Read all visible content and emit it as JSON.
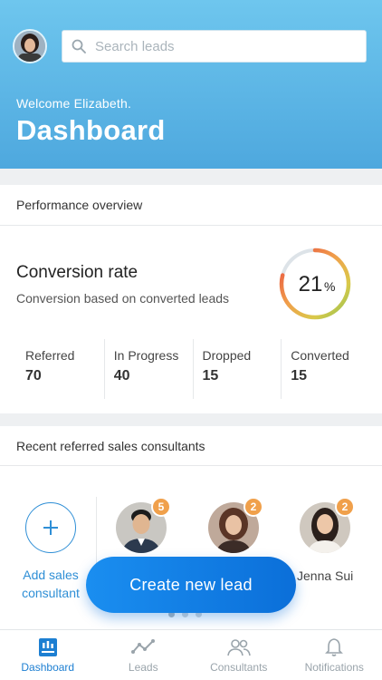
{
  "header": {
    "search_placeholder": "Search leads",
    "welcome": "Welcome Elizabeth.",
    "title": "Dashboard"
  },
  "performance": {
    "section_title": "Performance overview",
    "conversion_title": "Conversion rate",
    "conversion_subtitle": "Conversion based on converted leads",
    "rate_value": "21",
    "rate_unit": "%",
    "rate_fraction": 0.21,
    "stats": [
      {
        "label": "Referred",
        "value": "70"
      },
      {
        "label": "In Progress",
        "value": "40"
      },
      {
        "label": "Dropped",
        "value": "15"
      },
      {
        "label": "Converted",
        "value": "15"
      }
    ]
  },
  "recent": {
    "section_title": "Recent referred sales consultants",
    "add_label_line1": "Add sales",
    "add_label_line2": "consultant",
    "consultants": [
      {
        "name": "",
        "badge": "5"
      },
      {
        "name": "",
        "badge": "2"
      },
      {
        "name": "Jenna Sui",
        "badge": "2"
      }
    ],
    "page_count": 3,
    "active_page": 0
  },
  "cta": {
    "label": "Create new lead"
  },
  "tabs": [
    {
      "label": "Dashboard",
      "icon": "dashboard-icon",
      "active": true
    },
    {
      "label": "Leads",
      "icon": "leads-chart-icon",
      "active": false
    },
    {
      "label": "Consultants",
      "icon": "consultants-icon",
      "active": false
    },
    {
      "label": "Notifications",
      "icon": "bell-icon",
      "active": false
    }
  ],
  "colors": {
    "accent": "#1d7fd2",
    "badge": "#f0a04b",
    "ring_start": "#e8483f",
    "ring_end": "#8cc152"
  }
}
